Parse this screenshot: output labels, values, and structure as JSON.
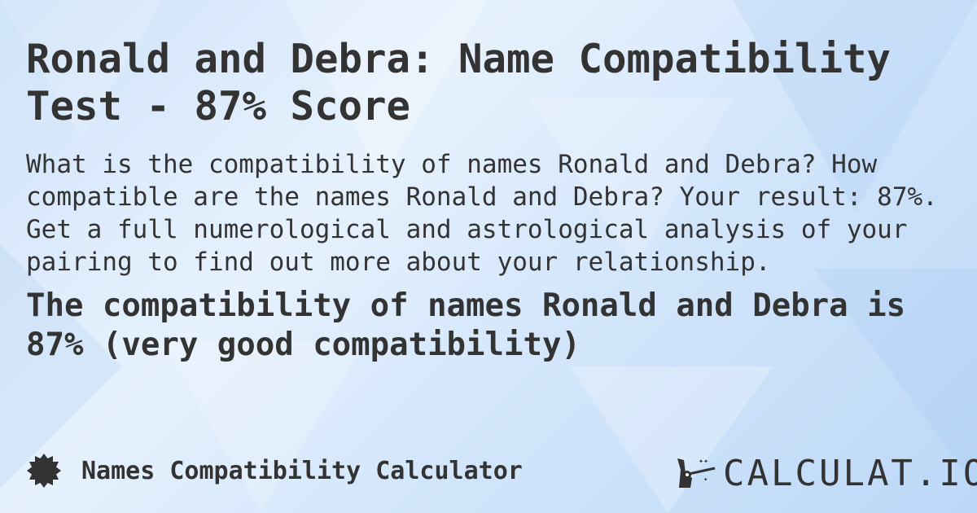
{
  "title": "Ronald and Debra: Name Compatibility Test - 87% Score",
  "description": "What is the compatibility of names Ronald and Debra? How compatible are the names Ronald and Debra? Your result: 87%. Get a full numerological and astrological analysis of your pairing to find out more about your relationship.",
  "result": "The compatibility of names Ronald and Debra is 87% (very good compatibility)",
  "footer": {
    "calculator_label": "Names Compatibility Calculator",
    "icon": "badge-icon"
  },
  "logo": {
    "text": "CALCULAT.IO",
    "icon": "magic-wand-hand-icon"
  },
  "colors": {
    "text": "#333333",
    "background": "#d6e8fb"
  }
}
